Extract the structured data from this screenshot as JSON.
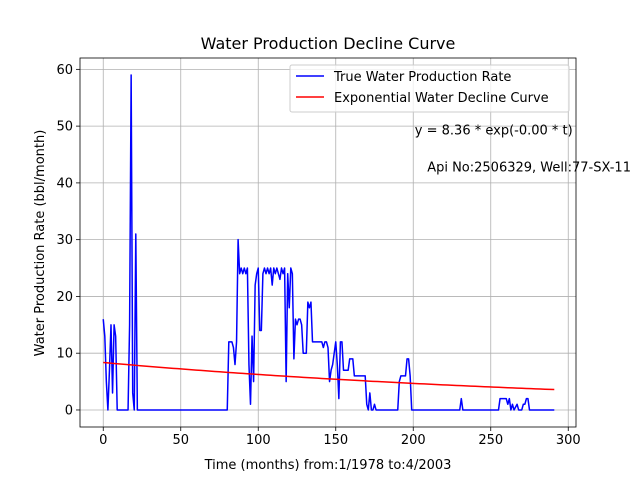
{
  "chart_data": {
    "type": "line",
    "title": "Water Production Decline Curve",
    "xlabel": "Time (months) from:1/1978 to:4/2003",
    "ylabel": "Water Production Rate (bbl/month)",
    "xlim": [
      -15,
      305
    ],
    "ylim": [
      -3,
      62
    ],
    "xticks": [
      0,
      50,
      100,
      150,
      200,
      250,
      300
    ],
    "yticks": [
      0,
      10,
      20,
      30,
      40,
      50,
      60
    ],
    "grid": true,
    "legend_position": "top-right",
    "annotations": [
      {
        "text": "y = 8.36 * exp(-0.00 * t)",
        "x": 201,
        "y": 48.5
      },
      {
        "text": "Api No:2506329, Well:77-SX-11",
        "x": 209,
        "y": 42
      }
    ],
    "series": [
      {
        "name": "True Water Production Rate",
        "color": "#0000ff",
        "points": [
          [
            0,
            16
          ],
          [
            1,
            13
          ],
          [
            2,
            5
          ],
          [
            3,
            0
          ],
          [
            4,
            7
          ],
          [
            5,
            15
          ],
          [
            6,
            3
          ],
          [
            7,
            15
          ],
          [
            8,
            13
          ],
          [
            9,
            0
          ],
          [
            10,
            0
          ],
          [
            12,
            0
          ],
          [
            14,
            0
          ],
          [
            16,
            0
          ],
          [
            17,
            15
          ],
          [
            18,
            59
          ],
          [
            19,
            3
          ],
          [
            20,
            0
          ],
          [
            21,
            31
          ],
          [
            22,
            0
          ],
          [
            25,
            0
          ],
          [
            40,
            0
          ],
          [
            60,
            0
          ],
          [
            80,
            0
          ],
          [
            81,
            12
          ],
          [
            83,
            12
          ],
          [
            84,
            11
          ],
          [
            85,
            8
          ],
          [
            86,
            12
          ],
          [
            87,
            30
          ],
          [
            88,
            24
          ],
          [
            89,
            25
          ],
          [
            90,
            24
          ],
          [
            91,
            25
          ],
          [
            92,
            24
          ],
          [
            93,
            25
          ],
          [
            94,
            8
          ],
          [
            95,
            1
          ],
          [
            96,
            13
          ],
          [
            97,
            5
          ],
          [
            98,
            22
          ],
          [
            99,
            24
          ],
          [
            100,
            25
          ],
          [
            101,
            14
          ],
          [
            102,
            14
          ],
          [
            103,
            24
          ],
          [
            104,
            25
          ],
          [
            105,
            24
          ],
          [
            106,
            25
          ],
          [
            107,
            24
          ],
          [
            108,
            25
          ],
          [
            109,
            22
          ],
          [
            110,
            25
          ],
          [
            111,
            24
          ],
          [
            112,
            25
          ],
          [
            113,
            24
          ],
          [
            114,
            23
          ],
          [
            115,
            25
          ],
          [
            116,
            24
          ],
          [
            117,
            25
          ],
          [
            118,
            5
          ],
          [
            119,
            24
          ],
          [
            120,
            18
          ],
          [
            121,
            25
          ],
          [
            122,
            24
          ],
          [
            123,
            9
          ],
          [
            124,
            16
          ],
          [
            125,
            15
          ],
          [
            126,
            16
          ],
          [
            127,
            16
          ],
          [
            128,
            15
          ],
          [
            129,
            10
          ],
          [
            130,
            10
          ],
          [
            131,
            10
          ],
          [
            132,
            19
          ],
          [
            133,
            18
          ],
          [
            134,
            19
          ],
          [
            135,
            12
          ],
          [
            137,
            12
          ],
          [
            139,
            12
          ],
          [
            141,
            12
          ],
          [
            142,
            11
          ],
          [
            143,
            12
          ],
          [
            144,
            12
          ],
          [
            145,
            11
          ],
          [
            146,
            5
          ],
          [
            147,
            7
          ],
          [
            148,
            8
          ],
          [
            149,
            10
          ],
          [
            150,
            12
          ],
          [
            151,
            8
          ],
          [
            152,
            2
          ],
          [
            153,
            12
          ],
          [
            154,
            12
          ],
          [
            155,
            7
          ],
          [
            156,
            7
          ],
          [
            157,
            7
          ],
          [
            158,
            7
          ],
          [
            159,
            9
          ],
          [
            160,
            9
          ],
          [
            161,
            9
          ],
          [
            162,
            6
          ],
          [
            164,
            6
          ],
          [
            166,
            6
          ],
          [
            168,
            6
          ],
          [
            169,
            6
          ],
          [
            170,
            1
          ],
          [
            171,
            0
          ],
          [
            172,
            3
          ],
          [
            173,
            0
          ],
          [
            174,
            0
          ],
          [
            175,
            1
          ],
          [
            176,
            0
          ],
          [
            180,
            0
          ],
          [
            184,
            0
          ],
          [
            190,
            0
          ],
          [
            191,
            5
          ],
          [
            192,
            6
          ],
          [
            194,
            6
          ],
          [
            195,
            6
          ],
          [
            196,
            9
          ],
          [
            197,
            9
          ],
          [
            198,
            6
          ],
          [
            199,
            0
          ],
          [
            205,
            0
          ],
          [
            215,
            0
          ],
          [
            225,
            0
          ],
          [
            230,
            0
          ],
          [
            231,
            2
          ],
          [
            232,
            0
          ],
          [
            240,
            0
          ],
          [
            250,
            0
          ],
          [
            255,
            0
          ],
          [
            256,
            2
          ],
          [
            258,
            2
          ],
          [
            260,
            2
          ],
          [
            261,
            1
          ],
          [
            262,
            2
          ],
          [
            263,
            0
          ],
          [
            264,
            1
          ],
          [
            265,
            0
          ],
          [
            267,
            1
          ],
          [
            268,
            0
          ],
          [
            270,
            0
          ],
          [
            271,
            1
          ],
          [
            272,
            1
          ],
          [
            273,
            2
          ],
          [
            274,
            2
          ],
          [
            275,
            0
          ],
          [
            280,
            0
          ],
          [
            285,
            0
          ],
          [
            291,
            0
          ]
        ]
      },
      {
        "name": "Exponential Water Decline Curve",
        "color": "#ff0000",
        "a": 8.36,
        "b": 0.0029,
        "x_range": [
          0,
          291
        ]
      }
    ]
  }
}
